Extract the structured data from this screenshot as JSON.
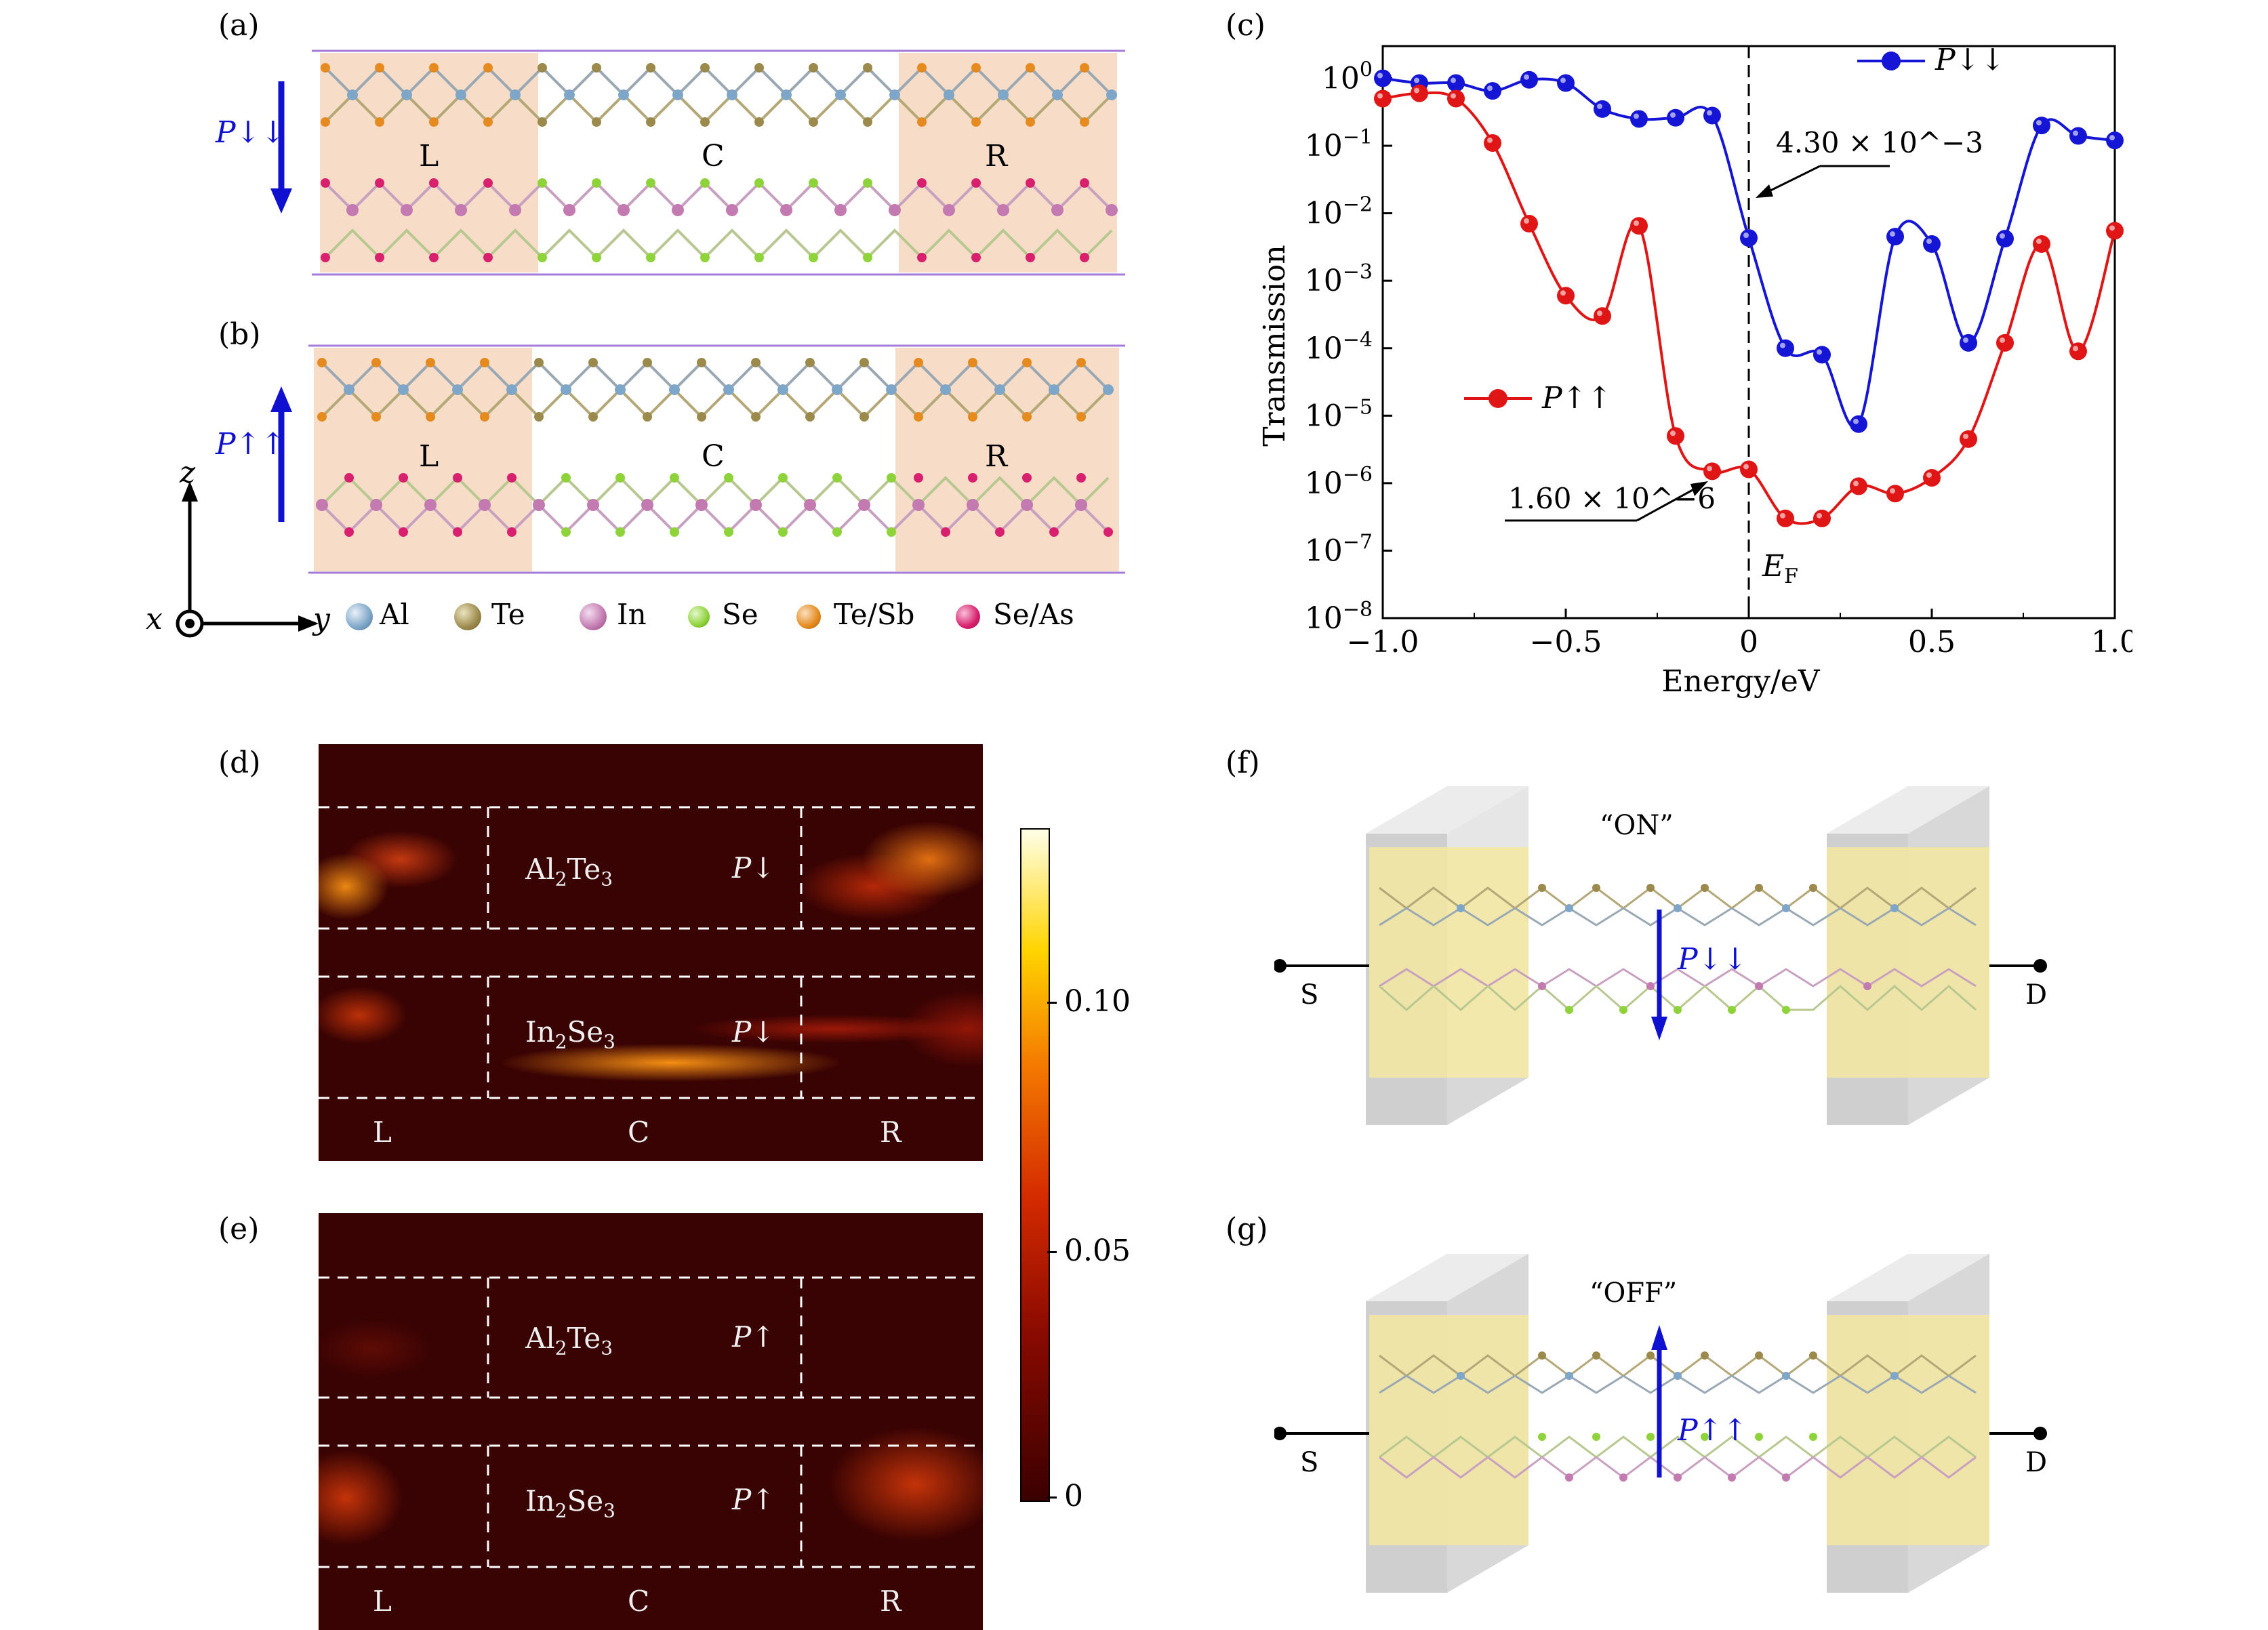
{
  "panel_labels": [
    "(a)",
    "(b)",
    "(c)",
    "(d)",
    "(e)",
    "(f)",
    "(g)"
  ],
  "region_labels": [
    "L",
    "C",
    "R"
  ],
  "polarization": {
    "down_down": "P↓↓",
    "up_up": "P↑↑",
    "down": "P↓",
    "up": "P↑"
  },
  "axes_triad": {
    "z": "z",
    "x": "x",
    "y": "y"
  },
  "atom_legend": [
    {
      "name": "Al",
      "color": "#7ea6c8"
    },
    {
      "name": "Te",
      "color": "#9c8a4c"
    },
    {
      "name": "In",
      "color": "#c27ab0"
    },
    {
      "name": "Se",
      "color": "#8fd33a"
    },
    {
      "name": "Te/Sb",
      "color": "#e58a1e"
    },
    {
      "name": "Se/As",
      "color": "#d8206e"
    }
  ],
  "chart_data": {
    "type": "line",
    "xlabel": "Energy/eV",
    "ylabel": "Transmission",
    "xlim": [
      -1.0,
      1.0
    ],
    "ylim": [
      1e-08,
      3
    ],
    "yscale": "log",
    "x_ticks": [
      "−1.0",
      "−0.5",
      "0",
      "0.5",
      "1.0"
    ],
    "y_ticks": [
      "10^0",
      "10^-1",
      "10^-2",
      "10^-3",
      "10^-4",
      "10^-5",
      "10^-6",
      "10^-7",
      "10^-8"
    ],
    "fermi_label": "E_F",
    "series": [
      {
        "name": "P↓↓",
        "color": "#1515d6",
        "x": [
          -1.0,
          -0.9,
          -0.8,
          -0.7,
          -0.6,
          -0.5,
          -0.4,
          -0.3,
          -0.2,
          -0.1,
          0.0,
          0.1,
          0.2,
          0.3,
          0.4,
          0.5,
          0.6,
          0.7,
          0.8,
          0.9,
          1.0
        ],
        "y": [
          1.0,
          0.85,
          0.85,
          0.65,
          0.95,
          0.85,
          0.35,
          0.25,
          0.26,
          0.28,
          0.0043,
          0.0001,
          8e-05,
          7.5e-06,
          0.0045,
          0.0035,
          0.00012,
          0.0042,
          0.2,
          0.14,
          0.12
        ]
      },
      {
        "name": "P↑↑",
        "color": "#e01515",
        "x": [
          -1.0,
          -0.9,
          -0.8,
          -0.7,
          -0.6,
          -0.5,
          -0.4,
          -0.3,
          -0.2,
          -0.1,
          0.0,
          0.1,
          0.2,
          0.3,
          0.4,
          0.5,
          0.6,
          0.7,
          0.8,
          0.9,
          1.0
        ],
        "y": [
          0.5,
          0.6,
          0.5,
          0.11,
          0.007,
          0.0006,
          0.0003,
          0.0065,
          5e-06,
          1.5e-06,
          1.6e-06,
          3e-07,
          3e-07,
          9e-07,
          7e-07,
          1.2e-06,
          4.5e-06,
          0.00012,
          0.0035,
          9e-05,
          0.0055
        ]
      }
    ],
    "annotations": [
      {
        "text": "4.30 × 10^−3",
        "x": 0.0,
        "y": 0.0043
      },
      {
        "text": "1.60 × 10^−6",
        "x": 0.0,
        "y": 1.6e-06
      }
    ]
  },
  "heatmap": {
    "materials_top": "Al2Te3",
    "materials_bottom": "In2Se3",
    "colorbar_ticks": [
      "0.10",
      "0.05",
      "0"
    ]
  },
  "device": {
    "on_label": "“ON”",
    "off_label": "“OFF”",
    "source": "S",
    "drain": "D"
  }
}
